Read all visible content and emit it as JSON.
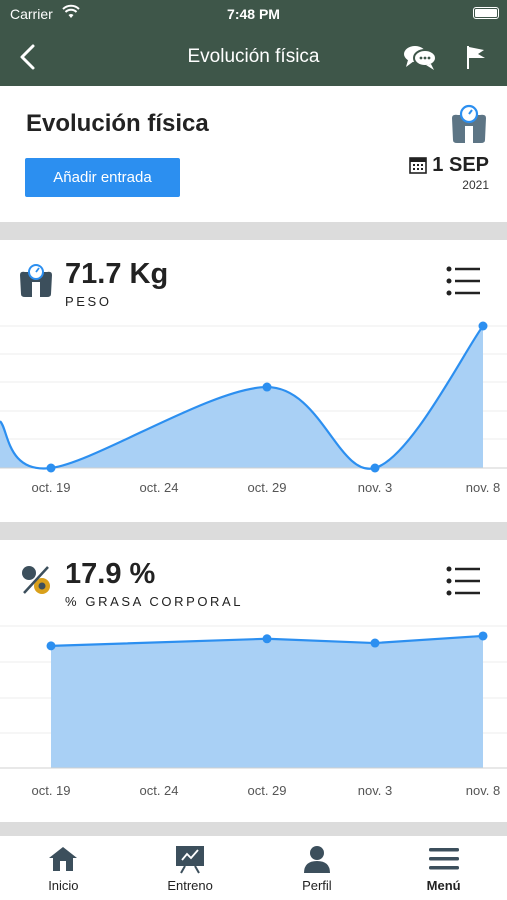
{
  "status_bar": {
    "carrier": "Carrier",
    "time": "7:48 PM"
  },
  "nav": {
    "title": "Evolución física"
  },
  "header": {
    "title": "Evolución física",
    "add_button": "Añadir entrada",
    "date_day": "1 SEP",
    "date_year": "2021"
  },
  "metrics": [
    {
      "value": "71.7 Kg",
      "label": "PESO",
      "icon": "scale-icon"
    },
    {
      "value": "17.9 %",
      "label": "% GRASA CORPORAL",
      "icon": "percent-icon"
    }
  ],
  "chart_data": [
    {
      "type": "area",
      "title": "",
      "ticks": [
        "oct. 19",
        "oct. 24",
        "oct. 29",
        "nov. 3",
        "nov. 8"
      ],
      "points": [
        {
          "x": "oct. 19",
          "y": 0
        },
        {
          "x": "oct. 29",
          "y": 0.57
        },
        {
          "x": "nov. 3",
          "y": 0
        },
        {
          "x": "nov. 8",
          "y": 1
        }
      ],
      "grid": true,
      "color": "#2c8ff0",
      "fill": "#a9d0f5"
    },
    {
      "type": "area",
      "title": "",
      "ticks": [
        "oct. 19",
        "oct. 24",
        "oct. 29",
        "nov. 3",
        "nov. 8"
      ],
      "points": [
        {
          "x": "oct. 19",
          "y": 0.86
        },
        {
          "x": "oct. 29",
          "y": 0.91
        },
        {
          "x": "nov. 3",
          "y": 0.88
        },
        {
          "x": "nov. 8",
          "y": 0.93
        }
      ],
      "grid": true,
      "color": "#2c8ff0",
      "fill": "#a9d0f5"
    }
  ],
  "tabs": [
    {
      "label": "Inicio",
      "icon": "home-icon"
    },
    {
      "label": "Entreno",
      "icon": "whiteboard-icon"
    },
    {
      "label": "Perfil",
      "icon": "user-icon"
    },
    {
      "label": "Menú",
      "icon": "hamburger-icon"
    }
  ]
}
